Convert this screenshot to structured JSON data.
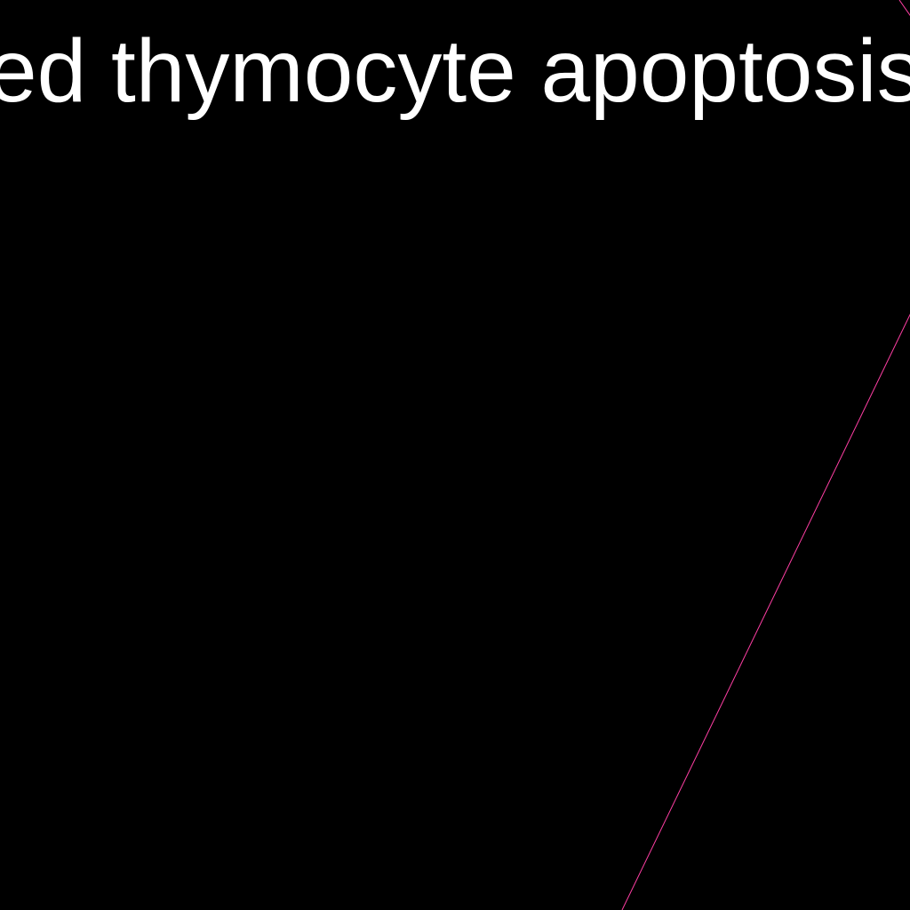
{
  "diagram": {
    "background_color": "#000000",
    "node": {
      "label": "ed thymocyte apoptosis",
      "text_color": "#ffffff"
    },
    "edges": [
      {
        "name": "edge-line",
        "color": "#ff3fa4"
      }
    ]
  }
}
